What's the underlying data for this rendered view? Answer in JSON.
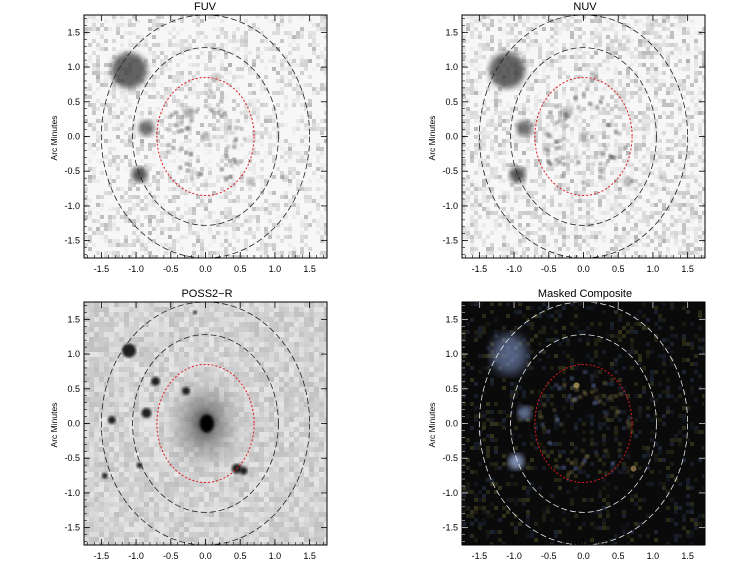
{
  "figure": {
    "panels": [
      {
        "title": "FUV",
        "ylabel": "Arc Minutes",
        "style": "fuv",
        "xticks": [
          "-1.5",
          "-1.0",
          "-0.5",
          "0.0",
          "0.5",
          "1.0",
          "1.5"
        ],
        "yticks": [
          "1.5",
          "1.0",
          "0.5",
          "0.0",
          "-0.5",
          "-1.0",
          "-1.5"
        ]
      },
      {
        "title": "NUV",
        "ylabel": "Arc Minutes",
        "style": "nuv",
        "xticks": [
          "-1.5",
          "-1.0",
          "-0.5",
          "0.0",
          "0.5",
          "1.0",
          "1.5"
        ],
        "yticks": [
          "1.5",
          "1.0",
          "0.5",
          "0.0",
          "-0.5",
          "-1.0",
          "-1.5"
        ]
      },
      {
        "title": "POSS2−R",
        "ylabel": "Arc Minutes",
        "style": "poss",
        "xticks": [
          "-1.5",
          "-1.0",
          "-0.5",
          "0.0",
          "0.5",
          "1.0",
          "1.5"
        ],
        "yticks": [
          "1.5",
          "1.0",
          "0.5",
          "0.0",
          "-0.5",
          "-1.0",
          "-1.5"
        ]
      },
      {
        "title": "Masked Composite",
        "ylabel": "Arc Minutes",
        "style": "composite",
        "xticks": [
          "-1.5",
          "-1.0",
          "-0.5",
          "0.0",
          "0.5",
          "1.0",
          "1.5"
        ],
        "yticks": [
          "1.5",
          "1.0",
          "0.5",
          "0.0",
          "-0.5",
          "-1.0",
          "-1.5"
        ]
      }
    ],
    "colors": {
      "inner_ellipse": "#e0191c",
      "outer_ellipse_light_bg": "#222222",
      "outer_ellipse_dark_bg": "#e8e8e8",
      "dark_background": "#0a0a0a"
    },
    "axes": {
      "xlim": [
        -1.75,
        1.75
      ],
      "ylim": [
        -1.75,
        1.75
      ]
    }
  }
}
